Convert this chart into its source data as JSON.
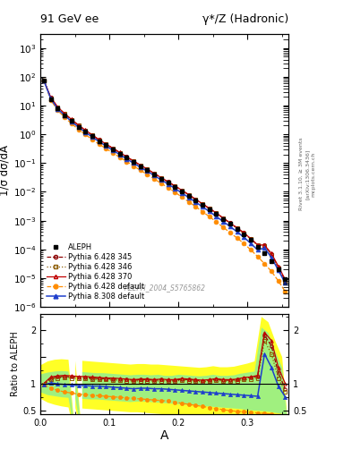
{
  "title_left": "91 GeV ee",
  "title_right": "γ*/Z (Hadronic)",
  "xlabel": "A",
  "ylabel_main": "1/σ dσ/dA",
  "ylabel_ratio": "Ratio to ALEPH",
  "watermark": "ALEPH_2004_S5765862",
  "rivet_label": "Rivet 3.1.10, ≥ 3M events",
  "arxiv_label": "[arXiv:1306.3436]",
  "mcplots_label": "mcplots.cern.ch",
  "aleph_x": [
    0.005,
    0.015,
    0.025,
    0.035,
    0.045,
    0.055,
    0.065,
    0.075,
    0.085,
    0.095,
    0.105,
    0.115,
    0.125,
    0.135,
    0.145,
    0.155,
    0.165,
    0.175,
    0.185,
    0.195,
    0.205,
    0.215,
    0.225,
    0.235,
    0.245,
    0.255,
    0.265,
    0.275,
    0.285,
    0.295,
    0.305,
    0.315,
    0.325,
    0.335,
    0.345,
    0.355
  ],
  "aleph_y": [
    75,
    17,
    7.8,
    4.6,
    2.9,
    1.85,
    1.25,
    0.85,
    0.59,
    0.42,
    0.3,
    0.215,
    0.155,
    0.11,
    0.079,
    0.057,
    0.041,
    0.029,
    0.021,
    0.015,
    0.0105,
    0.0074,
    0.0052,
    0.0036,
    0.0025,
    0.0017,
    0.00115,
    0.00078,
    0.00052,
    0.00034,
    0.00021,
    0.000125,
    7.2e-05,
    4e-05,
    2e-05,
    9e-06
  ],
  "aleph_yerr_lo": [
    2.0,
    0.4,
    0.2,
    0.12,
    0.08,
    0.05,
    0.035,
    0.024,
    0.017,
    0.012,
    0.009,
    0.007,
    0.005,
    0.004,
    0.003,
    0.002,
    0.0015,
    0.001,
    0.0008,
    0.0006,
    0.0004,
    0.0003,
    0.00022,
    0.00016,
    0.00011,
    7.5e-05,
    5e-05,
    3.5e-05,
    2.3e-05,
    1.5e-05,
    1e-05,
    6e-06,
    3.5e-06,
    2e-06,
    1e-06,
    5e-07
  ],
  "aleph_yerr_hi": [
    2.0,
    0.4,
    0.2,
    0.12,
    0.08,
    0.05,
    0.035,
    0.024,
    0.017,
    0.012,
    0.009,
    0.007,
    0.005,
    0.004,
    0.003,
    0.002,
    0.0015,
    0.001,
    0.0008,
    0.0006,
    0.0004,
    0.0003,
    0.00022,
    0.00016,
    0.00011,
    7.5e-05,
    5e-05,
    3.5e-05,
    2.3e-05,
    1.5e-05,
    1e-05,
    6e-06,
    3.5e-06,
    2e-06,
    1e-06,
    5e-07
  ],
  "p345_ratio": [
    0.98,
    1.1,
    1.12,
    1.13,
    1.12,
    1.11,
    1.11,
    1.1,
    1.09,
    1.09,
    1.08,
    1.08,
    1.07,
    1.06,
    1.07,
    1.07,
    1.06,
    1.07,
    1.06,
    1.06,
    1.08,
    1.07,
    1.06,
    1.05,
    1.06,
    1.08,
    1.06,
    1.06,
    1.07,
    1.1,
    1.11,
    1.13,
    1.9,
    1.7,
    1.2,
    0.9
  ],
  "p346_ratio": [
    0.98,
    1.08,
    1.1,
    1.11,
    1.1,
    1.09,
    1.09,
    1.08,
    1.07,
    1.07,
    1.06,
    1.06,
    1.05,
    1.04,
    1.05,
    1.05,
    1.04,
    1.05,
    1.04,
    1.04,
    1.06,
    1.05,
    1.04,
    1.03,
    1.04,
    1.06,
    1.04,
    1.04,
    1.05,
    1.07,
    1.08,
    1.1,
    1.8,
    1.55,
    1.1,
    0.85
  ],
  "p370_ratio": [
    1.0,
    1.12,
    1.14,
    1.15,
    1.14,
    1.13,
    1.13,
    1.12,
    1.11,
    1.1,
    1.1,
    1.09,
    1.08,
    1.07,
    1.08,
    1.08,
    1.07,
    1.08,
    1.07,
    1.07,
    1.09,
    1.08,
    1.07,
    1.06,
    1.07,
    1.09,
    1.07,
    1.07,
    1.08,
    1.11,
    1.12,
    1.15,
    1.95,
    1.8,
    1.3,
    1.0
  ],
  "pdef_ratio": [
    0.97,
    0.91,
    0.87,
    0.84,
    0.82,
    0.8,
    0.79,
    0.78,
    0.77,
    0.76,
    0.75,
    0.74,
    0.73,
    0.72,
    0.71,
    0.7,
    0.69,
    0.68,
    0.67,
    0.65,
    0.63,
    0.61,
    0.59,
    0.57,
    0.55,
    0.53,
    0.51,
    0.49,
    0.48,
    0.47,
    0.46,
    0.45,
    0.44,
    0.43,
    0.4,
    0.38
  ],
  "p8def_ratio": [
    0.97,
    1.01,
    0.99,
    0.98,
    0.97,
    0.96,
    0.96,
    0.95,
    0.95,
    0.94,
    0.93,
    0.92,
    0.91,
    0.9,
    0.91,
    0.91,
    0.9,
    0.9,
    0.89,
    0.88,
    0.87,
    0.86,
    0.85,
    0.84,
    0.83,
    0.82,
    0.81,
    0.8,
    0.79,
    0.78,
    0.77,
    0.76,
    1.55,
    1.3,
    0.95,
    0.75
  ],
  "yellow_band_lo": [
    0.72,
    0.65,
    0.61,
    0.58,
    0.56,
    0.55,
    0.54,
    0.53,
    0.52,
    0.51,
    0.5,
    0.49,
    0.48,
    0.47,
    0.47,
    0.46,
    0.45,
    0.44,
    0.43,
    0.42,
    0.41,
    0.4,
    0.38,
    0.37,
    0.36,
    0.34,
    0.33,
    0.32,
    0.31,
    0.3,
    0.29,
    0.28,
    0.27,
    0.26,
    0.25,
    0.24
  ],
  "yellow_band_hi": [
    1.35,
    1.42,
    1.45,
    1.46,
    1.45,
    1.43,
    1.43,
    1.42,
    1.41,
    1.4,
    1.39,
    1.38,
    1.37,
    1.36,
    1.37,
    1.37,
    1.36,
    1.36,
    1.35,
    1.34,
    1.33,
    1.32,
    1.31,
    1.3,
    1.31,
    1.33,
    1.31,
    1.31,
    1.32,
    1.35,
    1.38,
    1.42,
    2.25,
    2.15,
    1.8,
    1.5
  ],
  "green_band_lo": [
    0.84,
    0.79,
    0.77,
    0.75,
    0.74,
    0.73,
    0.72,
    0.71,
    0.71,
    0.7,
    0.69,
    0.68,
    0.67,
    0.66,
    0.67,
    0.67,
    0.66,
    0.65,
    0.64,
    0.63,
    0.62,
    0.61,
    0.6,
    0.59,
    0.58,
    0.57,
    0.56,
    0.55,
    0.54,
    0.53,
    0.51,
    0.5,
    0.49,
    0.48,
    0.46,
    0.44
  ],
  "green_band_hi": [
    1.18,
    1.21,
    1.23,
    1.24,
    1.23,
    1.22,
    1.22,
    1.21,
    1.2,
    1.2,
    1.19,
    1.18,
    1.17,
    1.16,
    1.17,
    1.17,
    1.16,
    1.17,
    1.15,
    1.15,
    1.17,
    1.16,
    1.15,
    1.14,
    1.15,
    1.17,
    1.15,
    1.15,
    1.16,
    1.19,
    1.21,
    1.23,
    2.05,
    1.95,
    1.6,
    1.3
  ],
  "color_345": "#8B0000",
  "color_346": "#8B5A00",
  "color_370": "#C00000",
  "color_pdef": "#FF8C00",
  "color_p8def": "#1E3ECC",
  "color_aleph": "#000000",
  "xlim": [
    0.0,
    0.36
  ],
  "ylim_main_lo": 1e-06,
  "ylim_main_hi": 3000,
  "ylim_ratio_lo": 0.42,
  "ylim_ratio_hi": 2.3
}
